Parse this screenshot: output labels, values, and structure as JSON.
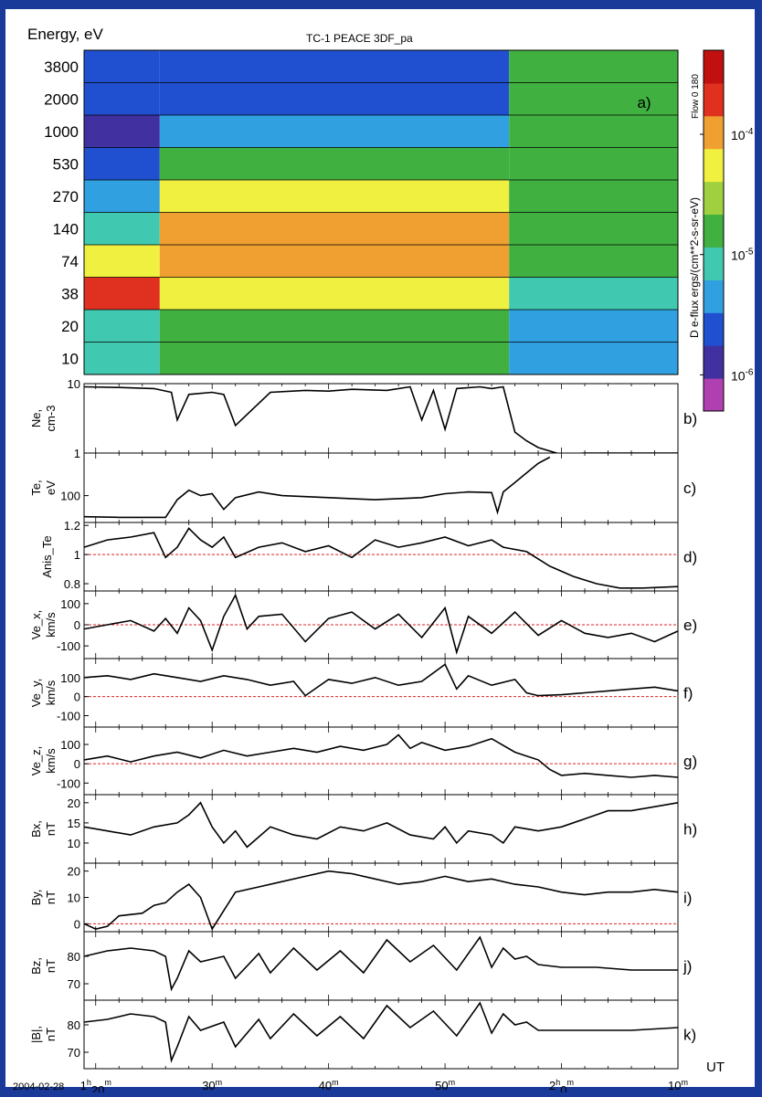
{
  "figure": {
    "title": "TC-1 PEACE 3DF_pa",
    "x_axis": {
      "prefix": "2004-02-28",
      "tick_minutes": [
        20,
        30,
        40,
        50,
        60,
        70
      ],
      "tick_labels": [
        {
          "main": "1",
          "sup1": "h",
          "num": "20",
          "sup2": "m"
        },
        {
          "main": "30",
          "sup1": "",
          "num": "",
          "sup2": "m"
        },
        {
          "main": "40",
          "sup1": "",
          "num": "",
          "sup2": "m"
        },
        {
          "main": "50",
          "sup1": "",
          "num": "",
          "sup2": "m"
        },
        {
          "main": "2",
          "sup1": "h",
          "num": "0",
          "sup2": "m"
        },
        {
          "main": "10",
          "sup1": "",
          "num": "",
          "sup2": "m"
        }
      ],
      "unit_label": "UT",
      "range_minutes": [
        19,
        70
      ]
    }
  },
  "chart_data": [
    {
      "id": "a",
      "type": "heatmap",
      "panel_label": "a)",
      "ylabel": "Energy, eV",
      "energy_ticks": [
        "3800",
        "2000",
        "1000",
        "530",
        "270",
        "140",
        "74",
        "38",
        "20",
        "10"
      ],
      "colorbar": {
        "label": "D e-flux ergs/(cm**2-s-sr-eV)",
        "ticks": [
          {
            "base": "10",
            "exp": "-4",
            "value": 0.0001
          },
          {
            "base": "10",
            "exp": "-5",
            "value": 1e-05
          },
          {
            "base": "10",
            "exp": "-6",
            "value": 1e-06
          }
        ],
        "side_label": "Flow  0  180",
        "range": [
          5e-07,
          0.0005
        ],
        "colors": [
          "#b040b0",
          "#4030a0",
          "#2050d0",
          "#30a0e0",
          "#40c8b0",
          "#40b040",
          "#a0d040",
          "#f0f040",
          "#f0a030",
          "#e03020",
          "#c01010"
        ]
      },
      "segments": [
        {
          "t_start": 19,
          "t_end": 25.5,
          "levels": [
            2,
            2,
            1,
            2,
            3,
            4,
            7,
            9,
            4,
            4
          ]
        },
        {
          "t_start": 25.5,
          "t_end": 55.5,
          "levels": [
            2,
            2,
            3,
            5,
            7,
            8,
            8,
            7,
            5,
            5
          ]
        },
        {
          "t_start": 55.5,
          "t_end": 70,
          "levels": [
            5,
            5,
            5,
            5,
            5,
            5,
            5,
            4,
            3,
            3
          ]
        }
      ]
    },
    {
      "id": "b",
      "type": "line",
      "panel_label": "b)",
      "ylabel": [
        "Ne,",
        "cm-3"
      ],
      "log": true,
      "ylim": [
        1,
        10
      ],
      "yticks": [
        {
          "v": 10,
          "label": "10"
        },
        {
          "v": 1,
          "label": "1"
        }
      ],
      "ref_line": null,
      "x": [
        19,
        22,
        25,
        26.5,
        27,
        28,
        30,
        31,
        32,
        35,
        38,
        40,
        42,
        45,
        47,
        48,
        49,
        50,
        51,
        53,
        54,
        55,
        56,
        57,
        58,
        60,
        62,
        66,
        70
      ],
      "y": [
        9,
        8.8,
        8.5,
        7.5,
        3,
        7,
        7.5,
        7,
        2.5,
        7.5,
        8,
        7.8,
        8.3,
        8,
        9,
        3,
        8,
        2.2,
        8.5,
        9,
        8.5,
        9,
        2,
        1.5,
        1.2,
        0.95,
        1,
        1,
        1
      ]
    },
    {
      "id": "c",
      "type": "line",
      "panel_label": "c)",
      "ylabel": [
        "Te,",
        "eV"
      ],
      "log": true,
      "ylim": [
        50,
        300
      ],
      "yticks": [
        {
          "v": 100,
          "label": "100"
        }
      ],
      "ref_line": null,
      "x": [
        19,
        22,
        25,
        26,
        27,
        28,
        29,
        30,
        31,
        32,
        34,
        36,
        40,
        44,
        48,
        50,
        52,
        54,
        54.5,
        55,
        56,
        57,
        58,
        59
      ],
      "y": [
        58,
        57,
        57,
        57,
        90,
        115,
        100,
        105,
        70,
        95,
        110,
        100,
        95,
        90,
        95,
        105,
        110,
        108,
        65,
        110,
        140,
        180,
        230,
        270
      ]
    },
    {
      "id": "d",
      "type": "line",
      "panel_label": "d)",
      "ylabel": [
        "Anis_Te"
      ],
      "log": false,
      "ylim": [
        0.75,
        1.22
      ],
      "yticks": [
        {
          "v": 1.2,
          "label": "1.2"
        },
        {
          "v": 1,
          "label": "1"
        },
        {
          "v": 0.8,
          "label": "0.8"
        }
      ],
      "ref_line": 1,
      "x": [
        19,
        21,
        23,
        25,
        26,
        27,
        28,
        29,
        30,
        31,
        32,
        34,
        36,
        38,
        40,
        42,
        44,
        46,
        48,
        50,
        52,
        54,
        55,
        57,
        59,
        61,
        63,
        65,
        67,
        70
      ],
      "y": [
        1.05,
        1.1,
        1.12,
        1.15,
        0.98,
        1.05,
        1.18,
        1.1,
        1.05,
        1.12,
        0.98,
        1.05,
        1.08,
        1.02,
        1.06,
        0.98,
        1.1,
        1.05,
        1.08,
        1.12,
        1.06,
        1.1,
        1.05,
        1.02,
        0.92,
        0.85,
        0.8,
        0.77,
        0.77,
        0.78
      ]
    },
    {
      "id": "e",
      "type": "line",
      "panel_label": "e)",
      "ylabel": [
        "Ve_x,",
        "km/s"
      ],
      "log": false,
      "ylim": [
        -160,
        160
      ],
      "yticks": [
        {
          "v": 100,
          "label": "100"
        },
        {
          "v": 0,
          "label": "0"
        },
        {
          "v": -100,
          "label": "-100"
        }
      ],
      "ref_line": 0,
      "x": [
        19,
        21,
        23,
        25,
        26,
        27,
        28,
        29,
        30,
        31,
        32,
        33,
        34,
        36,
        38,
        40,
        42,
        44,
        46,
        48,
        50,
        51,
        52,
        54,
        56,
        58,
        60,
        62,
        64,
        66,
        68,
        70
      ],
      "y": [
        -20,
        0,
        20,
        -30,
        30,
        -40,
        80,
        20,
        -120,
        40,
        140,
        -20,
        40,
        50,
        -80,
        30,
        60,
        -20,
        50,
        -60,
        80,
        -130,
        40,
        -40,
        60,
        -50,
        20,
        -40,
        -60,
        -40,
        -80,
        -30
      ]
    },
    {
      "id": "f",
      "type": "line",
      "panel_label": "f)",
      "ylabel": [
        "Ve_y,",
        "km/s"
      ],
      "log": false,
      "ylim": [
        -160,
        200
      ],
      "yticks": [
        {
          "v": 100,
          "label": "100"
        },
        {
          "v": 0,
          "label": "0"
        },
        {
          "v": -100,
          "label": "-100"
        }
      ],
      "ref_line": 0,
      "x": [
        19,
        21,
        23,
        25,
        27,
        29,
        31,
        33,
        35,
        37,
        38,
        40,
        42,
        44,
        46,
        48,
        50,
        51,
        52,
        54,
        56,
        57,
        58,
        60,
        62,
        64,
        66,
        68,
        70
      ],
      "y": [
        100,
        110,
        90,
        120,
        100,
        80,
        110,
        90,
        60,
        80,
        5,
        90,
        70,
        100,
        60,
        80,
        170,
        40,
        110,
        60,
        90,
        20,
        5,
        10,
        20,
        30,
        40,
        50,
        30
      ]
    },
    {
      "id": "g",
      "type": "line",
      "panel_label": "g)",
      "ylabel": [
        "Ve_z,",
        "km/s"
      ],
      "log": false,
      "ylim": [
        -160,
        190
      ],
      "yticks": [
        {
          "v": 100,
          "label": "100"
        },
        {
          "v": 0,
          "label": "0"
        },
        {
          "v": -100,
          "label": "-100"
        }
      ],
      "ref_line": 0,
      "x": [
        19,
        21,
        23,
        25,
        27,
        29,
        31,
        33,
        35,
        37,
        39,
        41,
        43,
        45,
        46,
        47,
        48,
        50,
        52,
        54,
        56,
        57,
        58,
        59,
        60,
        62,
        64,
        66,
        68,
        70
      ],
      "y": [
        20,
        40,
        10,
        40,
        60,
        30,
        70,
        40,
        60,
        80,
        60,
        90,
        70,
        100,
        150,
        80,
        110,
        70,
        90,
        130,
        60,
        40,
        20,
        -30,
        -60,
        -50,
        -60,
        -70,
        -60,
        -70
      ]
    },
    {
      "id": "h",
      "type": "line",
      "panel_label": "h)",
      "ylabel": [
        "Bx,",
        "nT"
      ],
      "log": false,
      "ylim": [
        5,
        22
      ],
      "yticks": [
        {
          "v": 20,
          "label": "20"
        },
        {
          "v": 15,
          "label": "15"
        },
        {
          "v": 10,
          "label": "10"
        }
      ],
      "ref_line": null,
      "x": [
        19,
        21,
        23,
        25,
        27,
        28,
        29,
        30,
        31,
        32,
        33,
        35,
        37,
        39,
        41,
        43,
        45,
        47,
        49,
        50,
        51,
        52,
        54,
        55,
        56,
        58,
        60,
        62,
        64,
        66,
        68,
        70
      ],
      "y": [
        14,
        13,
        12,
        14,
        15,
        17,
        20,
        14,
        10,
        13,
        9,
        14,
        12,
        11,
        14,
        13,
        15,
        12,
        11,
        14,
        10,
        13,
        12,
        10,
        14,
        13,
        14,
        16,
        18,
        18,
        19,
        20
      ]
    },
    {
      "id": "i",
      "type": "line",
      "panel_label": "i)",
      "ylabel": [
        "By,",
        "nT"
      ],
      "log": false,
      "ylim": [
        -3,
        23
      ],
      "yticks": [
        {
          "v": 20,
          "label": "20"
        },
        {
          "v": 10,
          "label": "10"
        },
        {
          "v": 0,
          "label": "0"
        }
      ],
      "ref_line": 0,
      "x": [
        19,
        20,
        21,
        22,
        24,
        25,
        26,
        27,
        28,
        29,
        30,
        31,
        32,
        34,
        36,
        38,
        40,
        42,
        44,
        46,
        48,
        50,
        52,
        54,
        56,
        58,
        60,
        62,
        64,
        66,
        68,
        70
      ],
      "y": [
        0,
        -2,
        -1,
        3,
        4,
        7,
        8,
        12,
        15,
        10,
        -2,
        5,
        12,
        14,
        16,
        18,
        20,
        19,
        17,
        15,
        16,
        18,
        16,
        17,
        15,
        14,
        12,
        11,
        12,
        12,
        13,
        12
      ]
    },
    {
      "id": "j",
      "type": "line",
      "panel_label": "j)",
      "ylabel": [
        "Bz,",
        "nT"
      ],
      "log": false,
      "ylim": [
        64,
        89
      ],
      "yticks": [
        {
          "v": 80,
          "label": "80"
        },
        {
          "v": 70,
          "label": "70"
        }
      ],
      "ref_line": null,
      "x": [
        19,
        21,
        23,
        25,
        26,
        26.5,
        27,
        28,
        29,
        31,
        32,
        34,
        35,
        37,
        39,
        41,
        43,
        45,
        47,
        49,
        51,
        53,
        54,
        55,
        56,
        57,
        58,
        60,
        63,
        66,
        70
      ],
      "y": [
        80,
        82,
        83,
        82,
        80,
        68,
        72,
        82,
        78,
        80,
        72,
        81,
        74,
        83,
        75,
        82,
        74,
        86,
        78,
        84,
        75,
        87,
        76,
        83,
        79,
        80,
        77,
        76,
        76,
        75,
        75
      ]
    },
    {
      "id": "k",
      "type": "line",
      "panel_label": "k)",
      "ylabel": [
        "|B|,",
        "nT"
      ],
      "log": false,
      "ylim": [
        64,
        89
      ],
      "yticks": [
        {
          "v": 80,
          "label": "80"
        },
        {
          "v": 70,
          "label": "70"
        }
      ],
      "ref_line": null,
      "x": [
        19,
        21,
        23,
        25,
        26,
        26.5,
        27,
        28,
        29,
        31,
        32,
        34,
        35,
        37,
        39,
        41,
        43,
        45,
        47,
        49,
        51,
        53,
        54,
        55,
        56,
        57,
        58,
        60,
        63,
        66,
        70
      ],
      "y": [
        81,
        82,
        84,
        83,
        81,
        67,
        72,
        83,
        78,
        81,
        72,
        82,
        75,
        84,
        76,
        83,
        75,
        87,
        79,
        85,
        76,
        88,
        77,
        84,
        80,
        81,
        78,
        78,
        78,
        78,
        79
      ]
    }
  ]
}
